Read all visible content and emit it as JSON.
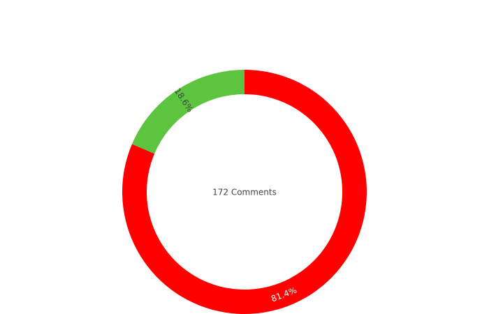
{
  "chart_data": {
    "type": "pie",
    "subtype": "donut",
    "center_text": "172 Comments",
    "slices": [
      {
        "percent": 81.4,
        "label": "81.4%",
        "color": "#ff0000",
        "label_color": "#ffffff"
      },
      {
        "percent": 18.6,
        "label": "18.6%",
        "color": "#5cc43e",
        "label_color": "#444444"
      }
    ],
    "start_angle_deg": 0,
    "direction": "clockwise",
    "legend": "none"
  }
}
